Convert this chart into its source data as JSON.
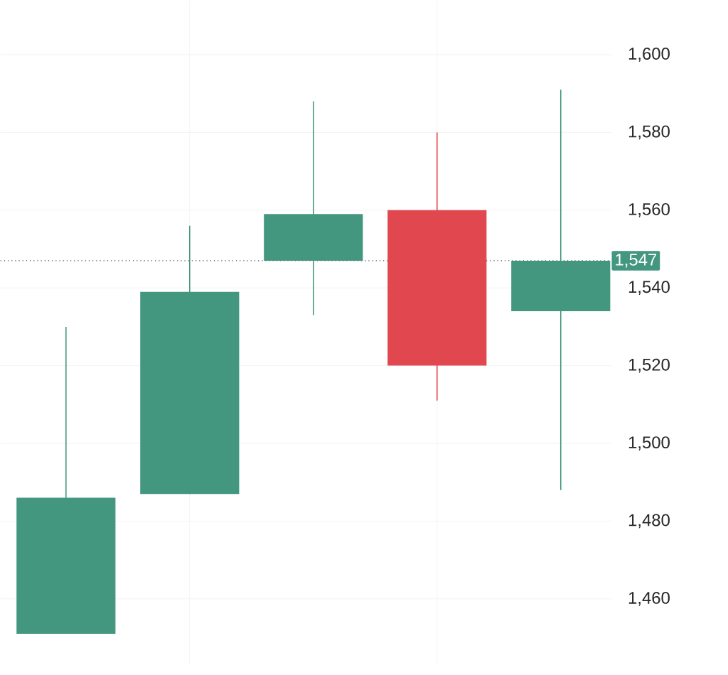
{
  "chart_data": {
    "type": "candlestick",
    "categories": [
      null,
      null,
      null,
      null,
      null
    ],
    "ohlc": [
      [
        1451,
        1530,
        1451,
        1486
      ],
      [
        1487,
        1556,
        1487,
        1539
      ],
      [
        1547,
        1588,
        1533,
        1559
      ],
      [
        1560,
        1580,
        1511,
        1520
      ],
      [
        1534,
        1591,
        1488,
        1547
      ]
    ],
    "colors": [
      "#44977f",
      "#44977f",
      "#44977f",
      "#e0474f",
      "#44977f"
    ],
    "ylim": [
      1443,
      1614
    ],
    "yticks": [
      {
        "value": 1460,
        "label": "1,460"
      },
      {
        "value": 1480,
        "label": "1,480"
      },
      {
        "value": 1500,
        "label": "1,500"
      },
      {
        "value": 1520,
        "label": "1,520"
      },
      {
        "value": 1540,
        "label": "1,540"
      },
      {
        "value": 1560,
        "label": "1,560"
      },
      {
        "value": 1580,
        "label": "1,580"
      },
      {
        "value": 1600,
        "label": "1,600"
      }
    ],
    "grid": true,
    "ref_lines": [
      {
        "axis": "y",
        "value": 1547,
        "label": "1,547",
        "line_style": "dotted"
      }
    ]
  }
}
